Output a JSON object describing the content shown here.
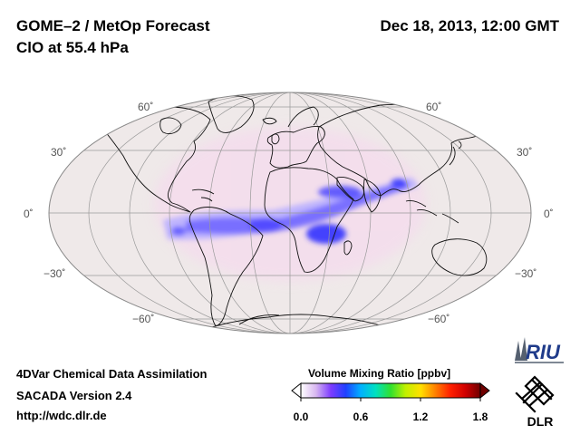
{
  "header": {
    "title": "GOME–2 / MetOp Forecast",
    "species": "ClO at 55.4 hPa",
    "datetime": "Dec 18, 2013, 12:00 GMT"
  },
  "map": {
    "projection": "Hammer-Aitoff (global)",
    "lat_labels": {
      "n60": "60˚",
      "n30": "30˚",
      "eq": "0˚",
      "s30": "−30˚",
      "s60": "−60˚"
    },
    "colors": {
      "ocean_background": "#efe9e9",
      "coastline": "#111111",
      "graticule": "#9a9a9a",
      "plume": "#5a55ff",
      "plume_core": "#2f3cff"
    }
  },
  "footer": {
    "line1": "4DVar Chemical Data Assimilation",
    "line2": "SACADA Version 2.4",
    "url": "http://wdc.dlr.de"
  },
  "colorbar": {
    "title": "Volume Mixing Ratio [ppbv]",
    "ticks": [
      "0.0",
      "0.6",
      "1.2",
      "1.8"
    ],
    "colors": [
      "#ffffff",
      "#d8b8f0",
      "#7d3cff",
      "#2040ff",
      "#00b0ff",
      "#00e0c0",
      "#30e030",
      "#c0f000",
      "#ffe000",
      "#ff8000",
      "#ff2000",
      "#d00000",
      "#700000"
    ]
  },
  "logos": {
    "riu": "RIU",
    "dlr": "DLR"
  }
}
